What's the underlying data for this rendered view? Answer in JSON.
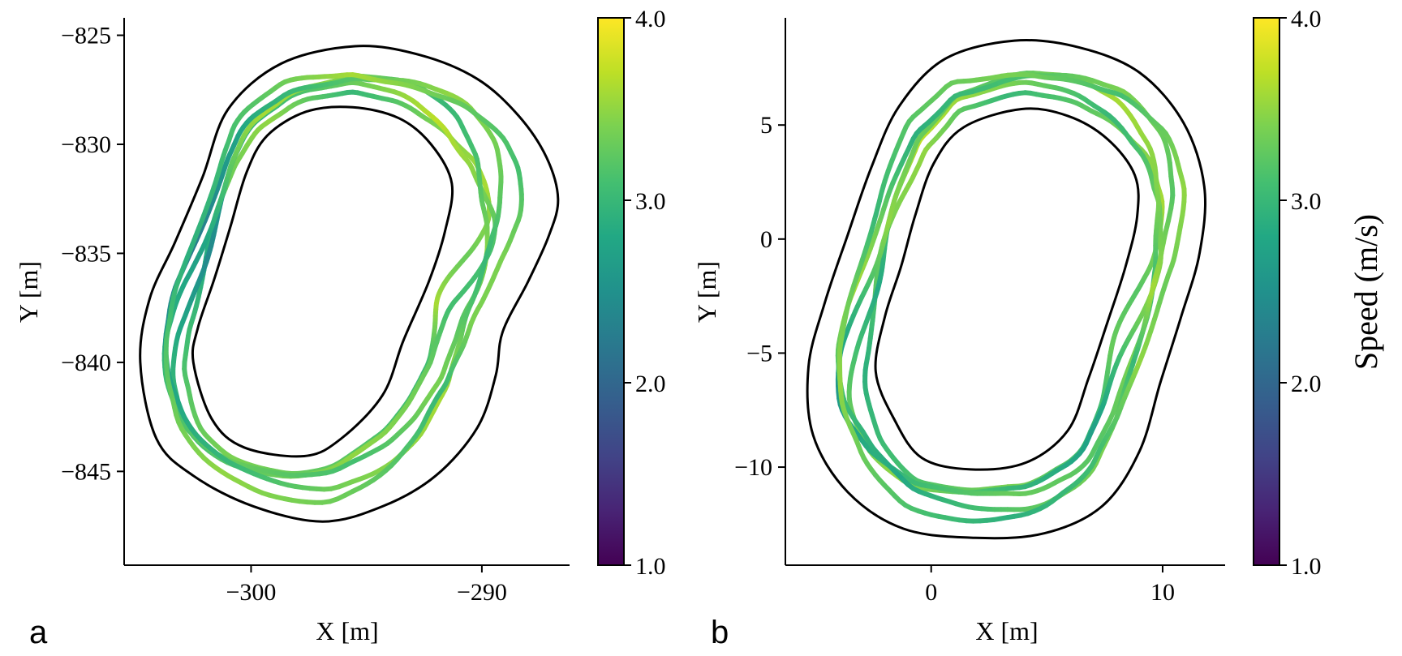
{
  "chart_data": [
    {
      "type": "line",
      "panel_label": "a",
      "xlabel": "X [m]",
      "ylabel": "Y [m]",
      "xlim": [
        -305.5,
        -286.2
      ],
      "ylim": [
        -849.3,
        -824.2
      ],
      "xticks": [
        -300,
        -290
      ],
      "xtick_labels": [
        "−300",
        "−290"
      ],
      "yticks": [
        -825,
        -830,
        -835,
        -840,
        -845
      ],
      "ytick_labels": [
        "−825",
        "−830",
        "−835",
        "−840",
        "−845"
      ],
      "grid": false,
      "colormap": "viridis",
      "track_center": [
        -295.6,
        -835.2
      ],
      "track_outer": [
        [
          -295.5,
          -825.5
        ],
        [
          -292.7,
          -825.9
        ],
        [
          -290.2,
          -827.0
        ],
        [
          -288.4,
          -828.7
        ],
        [
          -287.2,
          -830.6
        ],
        [
          -286.7,
          -832.5
        ],
        [
          -287.1,
          -834.2
        ],
        [
          -288.0,
          -836.3
        ],
        [
          -289.1,
          -838.6
        ],
        [
          -289.4,
          -840.6
        ],
        [
          -290.2,
          -843.0
        ],
        [
          -292.0,
          -845.2
        ],
        [
          -294.3,
          -846.6
        ],
        [
          -296.9,
          -847.3
        ],
        [
          -299.9,
          -846.6
        ],
        [
          -302.5,
          -845.2
        ],
        [
          -304.1,
          -843.5
        ],
        [
          -304.8,
          -840.0
        ],
        [
          -304.4,
          -837.1
        ],
        [
          -303.3,
          -834.5
        ],
        [
          -302.1,
          -831.5
        ],
        [
          -301.0,
          -828.4
        ],
        [
          -298.7,
          -826.3
        ],
        [
          -295.5,
          -825.5
        ]
      ],
      "track_inner": [
        [
          -295.6,
          -828.3
        ],
        [
          -293.6,
          -828.8
        ],
        [
          -292.2,
          -830.0
        ],
        [
          -291.3,
          -831.8
        ],
        [
          -291.6,
          -834.0
        ],
        [
          -292.3,
          -836.3
        ],
        [
          -293.4,
          -839.0
        ],
        [
          -294.3,
          -841.5
        ],
        [
          -296.1,
          -843.5
        ],
        [
          -297.7,
          -844.3
        ],
        [
          -300.3,
          -843.9
        ],
        [
          -301.7,
          -842.6
        ],
        [
          -302.5,
          -840.0
        ],
        [
          -302.3,
          -838.4
        ],
        [
          -301.6,
          -836.2
        ],
        [
          -300.9,
          -833.8
        ],
        [
          -300.2,
          -831.3
        ],
        [
          -299.3,
          -829.6
        ],
        [
          -297.6,
          -828.5
        ],
        [
          -295.6,
          -828.3
        ]
      ],
      "speed_trajectories": [
        {
          "offset": 0.0,
          "speed": [
            3.3,
            3.6,
            3.4,
            3.0,
            3.5,
            3.3,
            2.8,
            3.1,
            3.4,
            3.2,
            3.0,
            3.6
          ]
        },
        {
          "offset": 0.18,
          "speed": [
            3.1,
            3.4,
            3.7,
            3.3,
            3.0,
            2.6,
            2.4,
            2.9,
            3.2,
            3.5,
            3.3,
            3.1
          ]
        },
        {
          "offset": 0.36,
          "speed": [
            3.5,
            3.2,
            3.0,
            3.4,
            3.6,
            3.1,
            2.7,
            3.0,
            3.3,
            3.1,
            3.4,
            3.2
          ]
        },
        {
          "offset": 0.54,
          "speed": [
            3.0,
            3.3,
            3.5,
            3.2,
            2.9,
            2.5,
            2.2,
            2.7,
            3.0,
            3.4,
            3.6,
            3.2
          ]
        },
        {
          "offset": 0.72,
          "speed": [
            3.4,
            3.1,
            3.3,
            3.6,
            3.2,
            3.0,
            2.9,
            3.2,
            3.5,
            3.3,
            3.0,
            3.4
          ]
        }
      ],
      "colorbar": {
        "vmin": 1.0,
        "vmax": 4.0,
        "ticks": [
          "1.0",
          "2.0",
          "3.0",
          "4.0"
        ],
        "label": ""
      }
    },
    {
      "type": "line",
      "panel_label": "b",
      "xlabel": "X [m]",
      "ylabel": "Y [m]",
      "xlim": [
        -6.3,
        12.7
      ],
      "ylim": [
        -14.3,
        9.7
      ],
      "xticks": [
        0,
        10
      ],
      "xtick_labels": [
        "0",
        "10"
      ],
      "yticks": [
        5,
        0,
        -5,
        -10
      ],
      "ytick_labels": [
        "5",
        "0",
        "−5",
        "−10"
      ],
      "grid": false,
      "colormap": "viridis",
      "track_center": [
        3.3,
        -2.2
      ],
      "track_outer": [
        [
          3.6,
          8.7
        ],
        [
          6.4,
          8.4
        ],
        [
          9.0,
          7.3
        ],
        [
          10.9,
          5.1
        ],
        [
          11.8,
          2.3
        ],
        [
          11.6,
          -0.6
        ],
        [
          10.8,
          -3.4
        ],
        [
          9.9,
          -6.3
        ],
        [
          9.0,
          -9.3
        ],
        [
          7.4,
          -11.7
        ],
        [
          4.9,
          -12.9
        ],
        [
          1.9,
          -13.1
        ],
        [
          -1.2,
          -12.7
        ],
        [
          -3.6,
          -11.1
        ],
        [
          -5.1,
          -8.6
        ],
        [
          -5.3,
          -5.6
        ],
        [
          -4.6,
          -2.8
        ],
        [
          -3.6,
          0.2
        ],
        [
          -2.6,
          3.1
        ],
        [
          -1.4,
          5.8
        ],
        [
          0.6,
          7.9
        ],
        [
          3.6,
          8.7
        ]
      ],
      "track_inner": [
        [
          3.9,
          5.7
        ],
        [
          5.9,
          5.4
        ],
        [
          7.6,
          4.4
        ],
        [
          8.8,
          2.8
        ],
        [
          8.9,
          1.0
        ],
        [
          8.4,
          -1.2
        ],
        [
          7.6,
          -3.7
        ],
        [
          6.8,
          -6.1
        ],
        [
          5.9,
          -8.4
        ],
        [
          4.1,
          -9.8
        ],
        [
          1.7,
          -10.1
        ],
        [
          -0.4,
          -9.6
        ],
        [
          -1.6,
          -7.9
        ],
        [
          -2.4,
          -5.8
        ],
        [
          -2.0,
          -3.4
        ],
        [
          -1.3,
          -1.2
        ],
        [
          -0.7,
          1.0
        ],
        [
          0.1,
          3.3
        ],
        [
          1.4,
          4.9
        ],
        [
          3.9,
          5.7
        ]
      ],
      "speed_trajectories": [
        {
          "offset": 0.0,
          "speed": [
            3.2,
            3.6,
            3.3,
            3.0,
            3.5,
            3.4,
            3.2,
            2.9,
            3.1,
            3.4,
            3.0,
            3.3
          ]
        },
        {
          "offset": 0.18,
          "speed": [
            3.5,
            3.3,
            3.0,
            3.4,
            3.7,
            3.1,
            2.8,
            3.2,
            3.5,
            3.0,
            2.7,
            3.1
          ]
        },
        {
          "offset": 0.36,
          "speed": [
            3.0,
            3.4,
            3.6,
            3.2,
            3.3,
            3.5,
            3.1,
            2.6,
            3.0,
            3.3,
            3.2,
            3.4
          ]
        },
        {
          "offset": 0.54,
          "speed": [
            3.6,
            3.2,
            3.4,
            3.1,
            2.9,
            3.3,
            3.6,
            3.1,
            2.8,
            3.2,
            3.4,
            3.0
          ]
        },
        {
          "offset": 0.72,
          "speed": [
            3.3,
            3.5,
            3.1,
            3.4,
            3.2,
            3.0,
            3.3,
            3.5,
            3.2,
            2.9,
            3.1,
            3.5
          ]
        }
      ],
      "colorbar": {
        "vmin": 1.0,
        "vmax": 4.0,
        "ticks": [
          "1.0",
          "2.0",
          "3.0",
          "4.0"
        ],
        "label": "Speed (m/s)"
      }
    }
  ]
}
